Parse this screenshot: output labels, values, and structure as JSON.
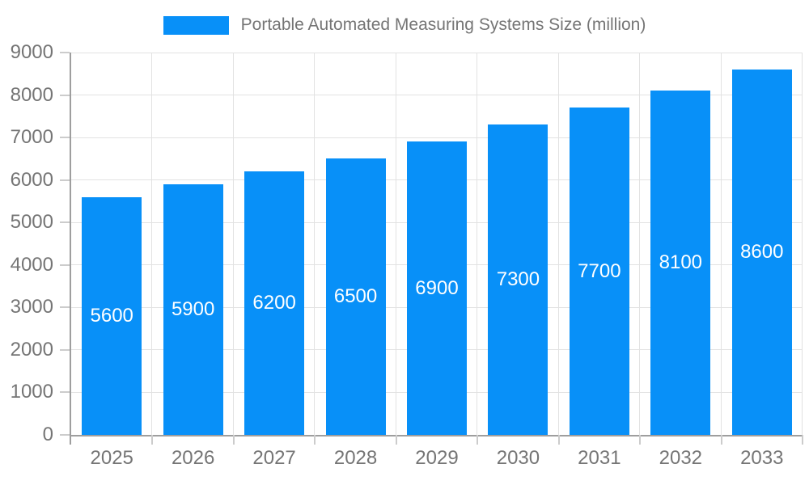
{
  "legend": {
    "label": "Portable Automated Measuring Systems Size (million)"
  },
  "chart_data": {
    "type": "bar",
    "title": "Portable Automated Measuring Systems Size (million)",
    "categories": [
      "2025",
      "2026",
      "2027",
      "2028",
      "2029",
      "2030",
      "2031",
      "2032",
      "2033"
    ],
    "values": [
      5600,
      5900,
      6200,
      6500,
      6900,
      7300,
      7700,
      8100,
      8600
    ],
    "xlabel": "",
    "ylabel": "",
    "ylim": [
      0,
      9000
    ],
    "ytick_step": 1000,
    "grid": true,
    "legend_position": "top",
    "data_labels": "inside-middle",
    "colors": {
      "bar": "#0890f8",
      "grid": "#e2e2e2",
      "axis": "#9e9e9e",
      "tick": "#cccccc",
      "text": "#757575",
      "data_label": "#ffffff",
      "background": "#ffffff"
    }
  }
}
